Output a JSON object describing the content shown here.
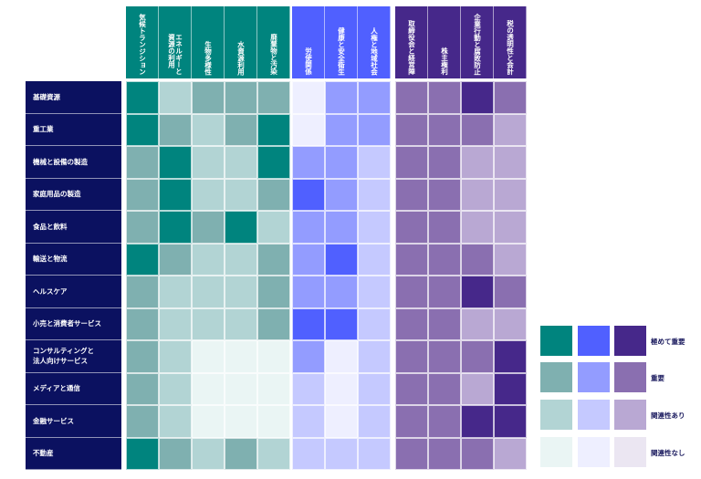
{
  "chart_data": {
    "type": "heatmap",
    "title": "",
    "column_groups": [
      {
        "name": "",
        "color": "#00847e",
        "columns": [
          "気候トランジション",
          "エネルギーと\n資源の利用",
          "生物多様性",
          "水資源利用",
          "廃棄物と汚染"
        ]
      },
      {
        "name": "",
        "color": "#5060ff",
        "columns": [
          "労使関係",
          "健康と安全衛生",
          "人権と地域社会"
        ]
      },
      {
        "name": "",
        "color": "#46288a",
        "columns": [
          "取締役会と経営陣",
          "株主権利",
          "企業行動と腐敗防止",
          "税の透明性と会計"
        ]
      }
    ],
    "rows": [
      "基礎資源",
      "重工業",
      "機械と設備の製造",
      "家庭用品の製造",
      "食品と飲料",
      "輸送と物流",
      "ヘルスケア",
      "小売と消費者サービス",
      "コンサルティングと\n法人向けサービス",
      "メディアと通信",
      "金融サービス",
      "不動産"
    ],
    "levels": [
      "関連性なし",
      "関連性あり",
      "重要",
      "極めて重要"
    ],
    "level_codes": "0 = 関連性なし, 1 = 関連性あり, 2 = 重要, 3 = 極めて重要",
    "values": [
      [
        3,
        1,
        2,
        2,
        2,
        0,
        2,
        2,
        2,
        2,
        3,
        2
      ],
      [
        3,
        2,
        1,
        2,
        3,
        0,
        2,
        2,
        2,
        2,
        2,
        1
      ],
      [
        2,
        3,
        1,
        1,
        3,
        2,
        2,
        1,
        2,
        2,
        1,
        1
      ],
      [
        2,
        3,
        1,
        1,
        2,
        3,
        2,
        1,
        2,
        2,
        1,
        1
      ],
      [
        2,
        3,
        2,
        3,
        1,
        2,
        2,
        1,
        2,
        2,
        1,
        1
      ],
      [
        3,
        2,
        1,
        1,
        2,
        2,
        3,
        1,
        2,
        2,
        2,
        1
      ],
      [
        2,
        1,
        1,
        1,
        2,
        2,
        2,
        1,
        2,
        2,
        3,
        2
      ],
      [
        2,
        1,
        1,
        1,
        2,
        3,
        3,
        1,
        2,
        2,
        1,
        1
      ],
      [
        2,
        1,
        0,
        0,
        0,
        2,
        0,
        1,
        2,
        2,
        2,
        3
      ],
      [
        2,
        1,
        0,
        0,
        0,
        1,
        0,
        1,
        2,
        2,
        1,
        3
      ],
      [
        2,
        1,
        0,
        0,
        0,
        1,
        0,
        1,
        2,
        2,
        3,
        3
      ],
      [
        3,
        2,
        1,
        2,
        1,
        1,
        1,
        1,
        2,
        2,
        2,
        1
      ]
    ],
    "palettes": [
      [
        "#eaf5f4",
        "#b2d4d4",
        "#7fb0b0",
        "#00847e"
      ],
      [
        "#eeefff",
        "#c5c9ff",
        "#939cff",
        "#5060ff"
      ],
      [
        "#ebe6f2",
        "#b9a8d3",
        "#8a6fb0",
        "#46288a"
      ]
    ],
    "legend": {
      "placement": "bottom-right",
      "labels": [
        "極めて重要",
        "重要",
        "関連性あり",
        "関連性なし"
      ]
    },
    "header_color": "#0b1160"
  }
}
